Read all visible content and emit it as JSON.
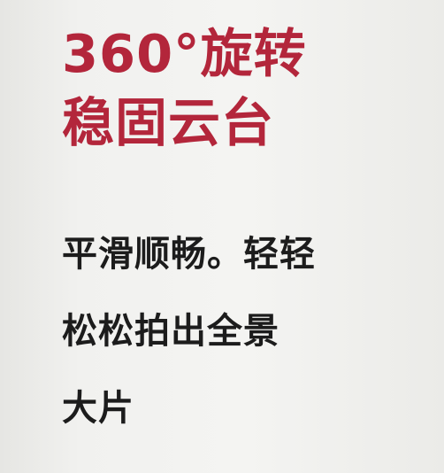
{
  "headline": {
    "line1": "360°旋转",
    "line2": "稳固云台"
  },
  "description": {
    "line1": "平滑顺畅。轻轻",
    "line2": "松松拍出全景",
    "line3": "大片"
  },
  "colors": {
    "headline": "#b3263b",
    "body": "#1c1c1c",
    "background": "#f1f1ef"
  }
}
